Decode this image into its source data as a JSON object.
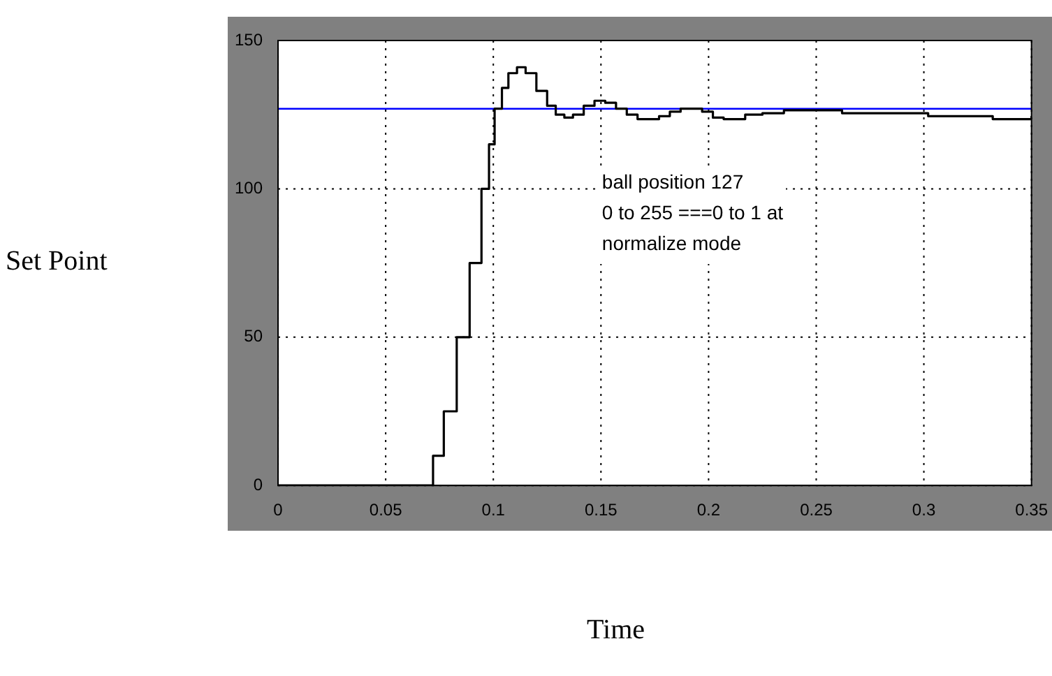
{
  "chart_data": {
    "type": "step",
    "xlabel": "Time",
    "ylabel": "Set Point",
    "annotations": [
      "ball position 127\n0 to 255 ===0 to 1 at\nnormalize mode"
    ],
    "x": [
      0,
      0.067,
      0.072,
      0.077,
      0.083,
      0.089,
      0.0945,
      0.098,
      0.1006,
      0.104,
      0.107,
      0.111,
      0.115,
      0.12,
      0.125,
      0.129,
      0.133,
      0.137,
      0.142,
      0.147,
      0.152,
      0.157,
      0.162,
      0.167,
      0.172,
      0.177,
      0.182,
      0.187,
      0.193,
      0.197,
      0.202,
      0.207,
      0.212,
      0.217,
      0.225,
      0.235,
      0.26,
      0.262,
      0.3,
      0.302,
      0.33,
      0.332,
      0.347,
      0.35
    ],
    "series": [
      {
        "color": "#000000",
        "values": [
          0,
          0,
          10,
          25,
          50,
          75,
          100,
          115,
          127,
          134,
          139,
          141,
          139,
          133,
          128,
          125,
          124,
          125,
          128,
          129.7,
          129,
          127,
          125,
          123.5,
          123.5,
          124.5,
          126,
          127,
          127,
          126,
          124,
          123.5,
          123.5,
          125,
          125.5,
          126.5,
          126.5,
          125.5,
          125.5,
          124.5,
          124.5,
          123.5,
          123.5,
          124.5
        ]
      }
    ],
    "ref_lines": [
      {
        "axis": "y",
        "value": 127,
        "color": "#0000ff"
      }
    ],
    "xlim": [
      0,
      0.35
    ],
    "xticks": [
      0,
      0.05,
      0.1,
      0.15,
      0.2,
      0.25,
      0.3,
      0.35
    ],
    "ylim": [
      0,
      150
    ],
    "yticks": [
      0,
      50,
      100,
      150
    ],
    "grid": true,
    "legend": false,
    "marker": "none",
    "line_style": "solid"
  }
}
